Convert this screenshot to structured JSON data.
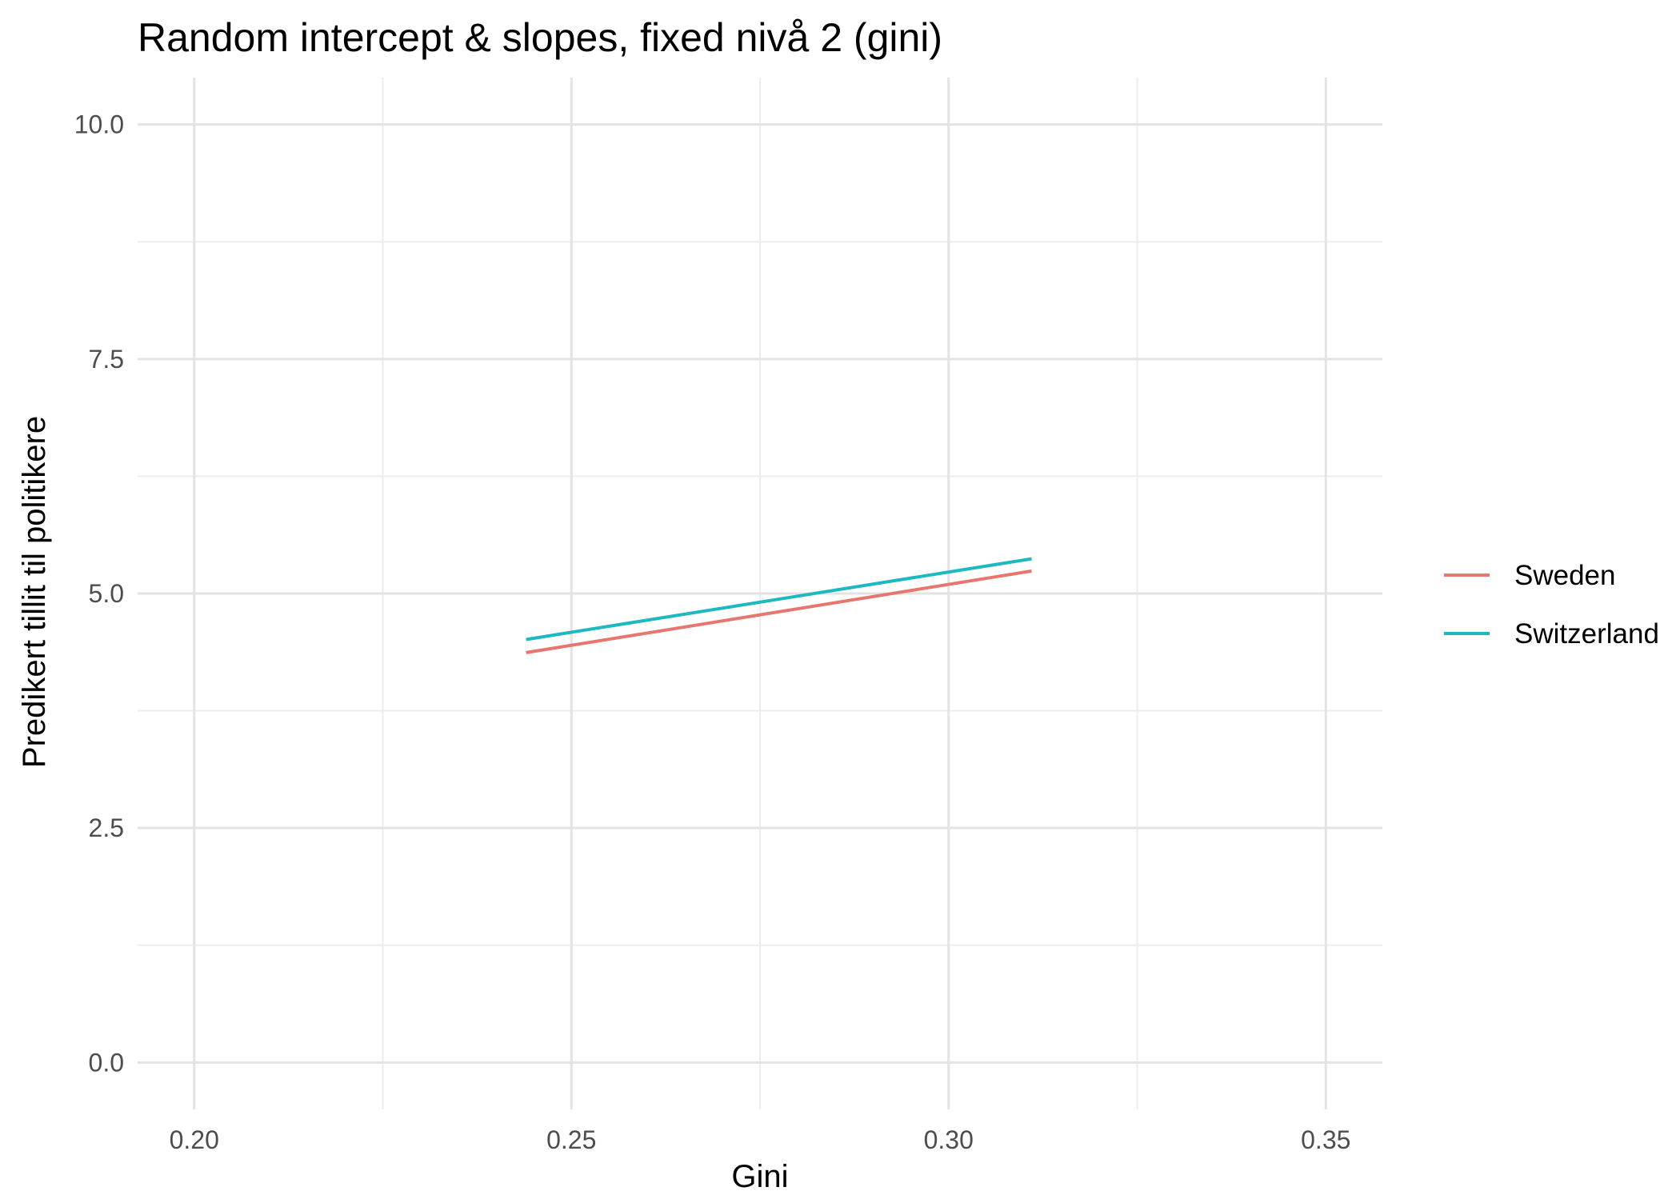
{
  "chart_data": {
    "type": "line",
    "title": "Random intercept & slopes, fixed nivå 2 (gini)",
    "xlabel": "Gini",
    "ylabel": "Predikert tillit til politikere",
    "xlim": [
      0.1925,
      0.3575
    ],
    "ylim": [
      -0.5,
      10.5
    ],
    "x_ticks": [
      0.2,
      0.25,
      0.3,
      0.35
    ],
    "x_tick_labels": [
      "0.20",
      "0.25",
      "0.30",
      "0.35"
    ],
    "y_ticks": [
      0.0,
      2.5,
      5.0,
      7.5,
      10.0
    ],
    "y_tick_labels": [
      "0.0",
      "2.5",
      "5.0",
      "7.5",
      "10.0"
    ],
    "grid": true,
    "legend_position": "right",
    "series": [
      {
        "name": "Sweden",
        "color": "#E7766F",
        "x": [
          0.244,
          0.311
        ],
        "y": [
          4.37,
          5.24
        ]
      },
      {
        "name": "Switzerland",
        "color": "#1EB9C0",
        "x": [
          0.244,
          0.311
        ],
        "y": [
          4.51,
          5.37
        ]
      }
    ]
  }
}
